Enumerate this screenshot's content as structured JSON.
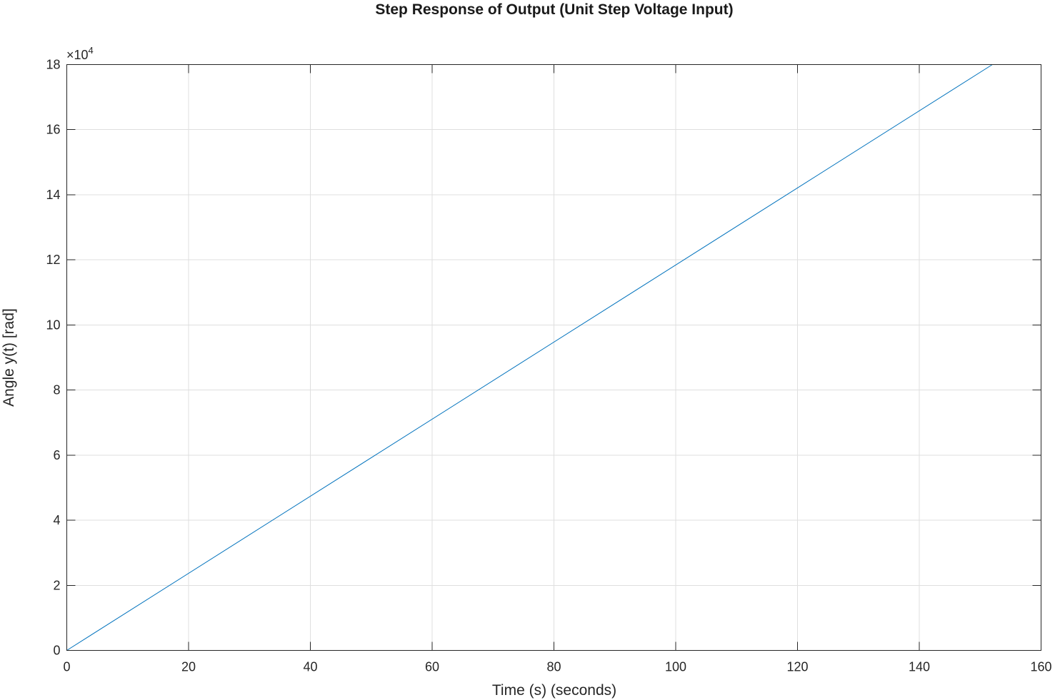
{
  "chart_data": {
    "type": "line",
    "title": "Step Response of Output (Unit Step Voltage Input)",
    "xlabel": "Time (s) (seconds)",
    "ylabel": "Angle y(t) [rad]",
    "xlim": [
      0,
      160
    ],
    "ylim": [
      0,
      180000
    ],
    "xticks": [
      0,
      20,
      40,
      60,
      80,
      100,
      120,
      140,
      160
    ],
    "xtick_labels": [
      "0",
      "20",
      "40",
      "60",
      "80",
      "100",
      "120",
      "140",
      "160"
    ],
    "yticks": [
      0,
      20000,
      40000,
      60000,
      80000,
      100000,
      120000,
      140000,
      160000,
      180000
    ],
    "ytick_labels": [
      "0",
      "2",
      "4",
      "6",
      "8",
      "10",
      "12",
      "14",
      "16",
      "18"
    ],
    "y_exponent_prefix": "×10",
    "y_exponent_power": "4",
    "grid": true,
    "series": [
      {
        "color": "#0072bd",
        "x": [
          0,
          152
        ],
        "y": [
          0,
          180000
        ]
      }
    ]
  }
}
